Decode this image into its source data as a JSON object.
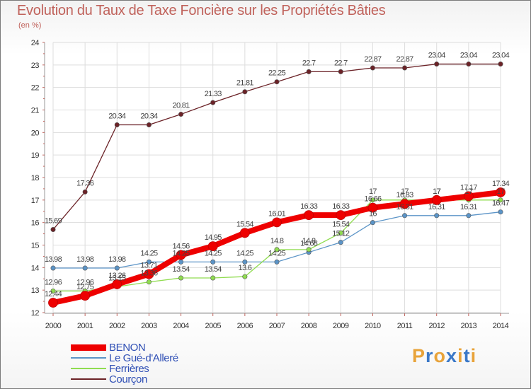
{
  "title": "Evolution du Taux de Taxe Foncière sur les Propriétés Bâties",
  "subtitle": "(en %)",
  "brand": {
    "letters": [
      "P",
      "r",
      "o",
      "x",
      "i",
      "t",
      "i"
    ],
    "colors": [
      "#e8a33a",
      "#3a78c8",
      "#e8a33a",
      "#3a78c8",
      "#e8a33a",
      "#3a78c8",
      "#e8a33a"
    ]
  },
  "chart_data": {
    "type": "line",
    "title": "Evolution du Taux de Taxe Foncière sur les Propriétés Bâties",
    "ylabel": "(en %)",
    "xlabel": "",
    "ylim": [
      12,
      24
    ],
    "yticks": [
      12,
      13,
      14,
      15,
      16,
      17,
      18,
      19,
      20,
      21,
      22,
      23,
      24
    ],
    "x": [
      2000,
      2001,
      2002,
      2003,
      2004,
      2005,
      2006,
      2007,
      2008,
      2009,
      2010,
      2011,
      2012,
      2013,
      2014
    ],
    "grid": true,
    "series": [
      {
        "name": "BENON",
        "color": "#ee0000",
        "values": [
          12.44,
          12.75,
          13.26,
          13.71,
          14.56,
          14.95,
          15.54,
          16.01,
          16.33,
          16.33,
          16.66,
          16.83,
          17.0,
          17.17,
          17.34
        ],
        "labels": [
          "12.44",
          "12.75",
          "13.26",
          "13.71",
          "14.56",
          "14.95",
          "15.54",
          "16.01",
          "16.33",
          "16.33",
          "16.66",
          "16.83",
          "17",
          "17.17",
          "17.34"
        ]
      },
      {
        "name": "Le Gué-d'Alleré",
        "color": "#5b94c7",
        "values": [
          13.98,
          13.98,
          13.98,
          14.25,
          14.25,
          14.25,
          14.25,
          14.25,
          14.68,
          15.12,
          16.0,
          16.31,
          16.31,
          16.31,
          16.47
        ],
        "labels": [
          "13.98",
          "13.98",
          "13.98",
          "14.25",
          "14.25",
          "14.25",
          "14.25",
          "14.25",
          "14.68",
          "15.12",
          "16",
          "16.31",
          "16.31",
          "16.31",
          "16.47"
        ]
      },
      {
        "name": "Ferrières",
        "color": "#90dc50",
        "values": [
          12.96,
          12.96,
          13.15,
          13.36,
          13.54,
          13.54,
          13.6,
          14.8,
          14.8,
          15.54,
          17.0,
          17.0,
          17.0,
          17.0,
          17.0
        ],
        "labels": [
          "12.96",
          "12.96",
          "13.15",
          "13.36",
          "13.54",
          "13.54",
          "13.6",
          "14.8",
          "14.8",
          "15.54",
          "17",
          "17",
          "17",
          "17",
          "17"
        ]
      },
      {
        "name": "Courçon",
        "color": "#6b2227",
        "values": [
          15.69,
          17.36,
          20.34,
          20.34,
          20.81,
          21.33,
          21.81,
          22.25,
          22.7,
          22.7,
          22.87,
          22.87,
          23.04,
          23.04,
          23.04
        ],
        "labels": [
          "15.69",
          "17.36",
          "20.34",
          "20.34",
          "20.81",
          "21.33",
          "21.81",
          "22.25",
          "22.7",
          "22.7",
          "22.87",
          "22.87",
          "23.04",
          "23.04",
          "23.04"
        ]
      }
    ]
  }
}
